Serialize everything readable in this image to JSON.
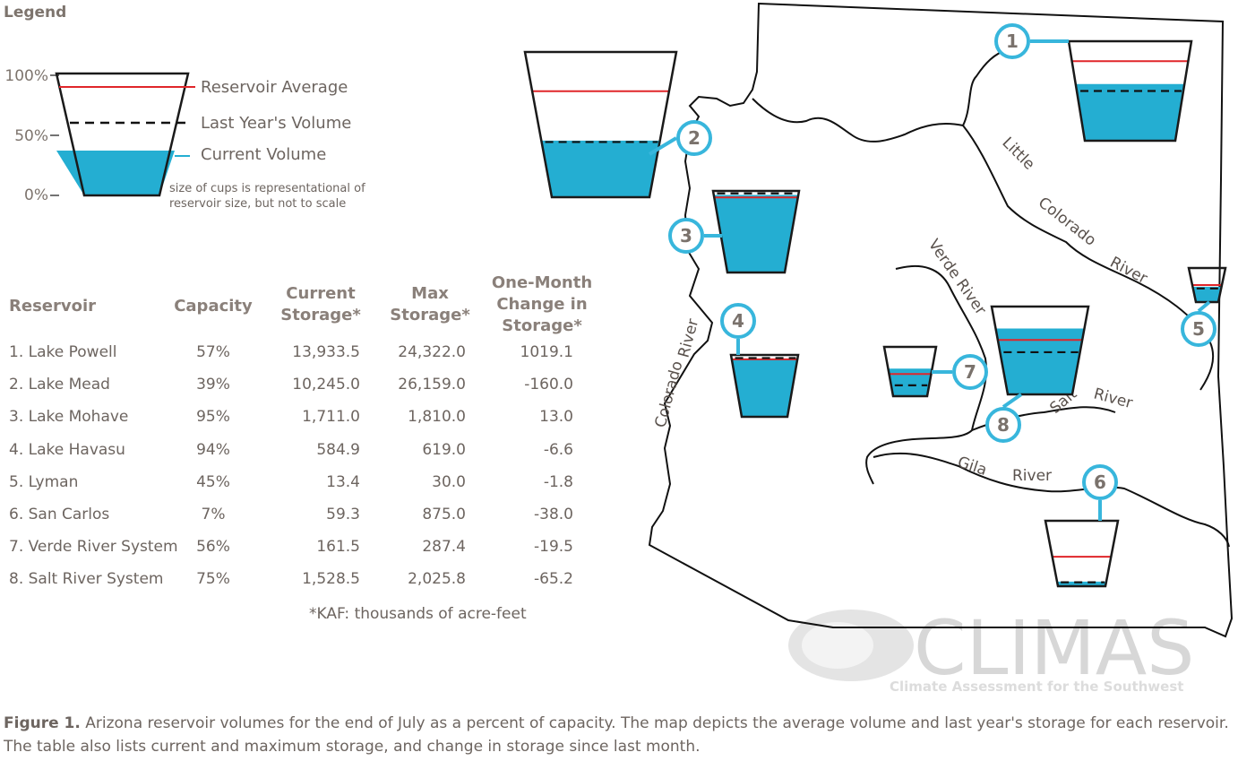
{
  "legend": {
    "title": "Legend",
    "ticks": [
      "100%",
      "50%",
      "0%"
    ],
    "labels": {
      "average": "Reservoir Average",
      "last_year": "Last Year's Volume",
      "current": "Current Volume"
    },
    "note": "size of cups is representational of reservoir size, but not to scale"
  },
  "table": {
    "headers": {
      "reservoir": "Reservoir",
      "capacity": "Capacity",
      "current": [
        "Current",
        "Storage*"
      ],
      "max": [
        "Max",
        "Storage*"
      ],
      "change": [
        "One-Month",
        "Change in",
        "Storage*"
      ]
    },
    "rows": [
      {
        "name": "1. Lake Powell",
        "capacity": "57%",
        "current": "13,933.5",
        "max": "24,322.0",
        "change": "1019.1"
      },
      {
        "name": "2. Lake Mead",
        "capacity": "39%",
        "current": "10,245.0",
        "max": "26,159.0",
        "change": "-160.0"
      },
      {
        "name": "3. Lake Mohave",
        "capacity": "95%",
        "current": "1,711.0",
        "max": "1,810.0",
        "change": "13.0"
      },
      {
        "name": "4. Lake Havasu",
        "capacity": "94%",
        "current": "584.9",
        "max": "619.0",
        "change": "-6.6"
      },
      {
        "name": "5. Lyman",
        "capacity": "45%",
        "current": "13.4",
        "max": "30.0",
        "change": "-1.8"
      },
      {
        "name": "6. San Carlos",
        "capacity": "7%",
        "current": "59.3",
        "max": "875.0",
        "change": "-38.0"
      },
      {
        "name": "7. Verde River System",
        "capacity": "56%",
        "current": "161.5",
        "max": "287.4",
        "change": "-19.5"
      },
      {
        "name": "8. Salt River System",
        "capacity": "75%",
        "current": "1,528.5",
        "max": "2,025.8",
        "change": "-65.2"
      }
    ],
    "footnote": "*KAF: thousands of acre-feet"
  },
  "map": {
    "rivers": {
      "little": "Little",
      "little_colorado": "Colorado",
      "little_river": "River",
      "verde": "Verde River",
      "colorado": "Colorado",
      "colorado_river": "River",
      "salt": "Salt",
      "salt_river": "River",
      "gila": "Gila",
      "gila_river": "River"
    },
    "logo": {
      "name": "CLIMAS",
      "tagline": "Climate Assessment for the Southwest"
    }
  },
  "caption": {
    "label": "Figure 1.",
    "text": "Arizona reservoir volumes for the end of July as a percent of capacity. The map depicts the average volume and last year's storage for each reservoir. The table also lists current and maximum storage, and change in storage since last month."
  },
  "colors": {
    "water": "#24aed2",
    "average": "#e0262a",
    "last_year": "#111111",
    "cup_outline": "#1a1a1a",
    "marker": "#38b6dc",
    "text": "#6d6560"
  },
  "chart_data": {
    "type": "table",
    "units": "KAF",
    "columns": [
      "Reservoir",
      "Capacity",
      "Current Storage*",
      "Max Storage*",
      "One-Month Change in Storage*"
    ],
    "rows": [
      [
        "1. Lake Powell",
        57,
        13933.5,
        24322.0,
        1019.1
      ],
      [
        "2. Lake Mead",
        39,
        10245.0,
        26159.0,
        -160.0
      ],
      [
        "3. Lake Mohave",
        95,
        1711.0,
        1810.0,
        13.0
      ],
      [
        "4. Lake Havasu",
        94,
        584.9,
        619.0,
        -6.6
      ],
      [
        "5. Lyman",
        45,
        13.4,
        30.0,
        -1.8
      ],
      [
        "6. San Carlos",
        7,
        59.3,
        875.0,
        -38.0
      ],
      [
        "7. Verde River System",
        56,
        161.5,
        287.4,
        -19.5
      ],
      [
        "8. Salt River System",
        75,
        1528.5,
        2025.8,
        -65.2
      ]
    ],
    "map_markers": [
      {
        "id": "1",
        "current_pct": 57,
        "last_year_pct": 50,
        "average_pct": 80
      },
      {
        "id": "2",
        "current_pct": 39,
        "last_year_pct": 38,
        "average_pct": 73
      },
      {
        "id": "3",
        "current_pct": 95,
        "last_year_pct": 97,
        "average_pct": 92
      },
      {
        "id": "4",
        "current_pct": 94,
        "last_year_pct": 95,
        "average_pct": 93
      },
      {
        "id": "5",
        "current_pct": 45,
        "last_year_pct": 40,
        "average_pct": 50
      },
      {
        "id": "6",
        "current_pct": 7,
        "last_year_pct": 6,
        "average_pct": 45
      },
      {
        "id": "7",
        "current_pct": 56,
        "last_year_pct": 22,
        "average_pct": 45
      },
      {
        "id": "8",
        "current_pct": 75,
        "last_year_pct": 48,
        "average_pct": 62
      }
    ]
  }
}
